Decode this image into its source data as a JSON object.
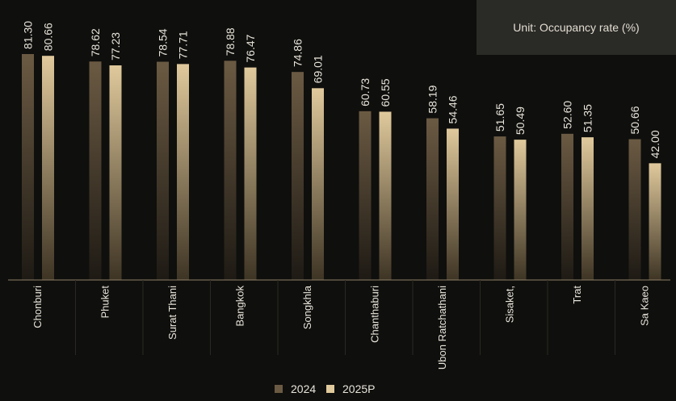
{
  "unit_label": "Unit: Occupancy rate (%)",
  "colors": {
    "background": "#0f0f0d",
    "series_2024_top": "#6b5a43",
    "series_2024_bottom": "#1e1a14",
    "series_2025_top": "#e0c99c",
    "series_2025_bottom": "#3e3424",
    "text": "#e8e4da",
    "axis": "#8c7f68"
  },
  "chart_data": {
    "type": "bar",
    "categories": [
      "Chonburi",
      "Phuket",
      "Surat Thani",
      "Bangkok",
      "Songkhla",
      "Chanthaburi",
      "Ubon Ratchathani",
      "Sisaket,",
      "Trat",
      "Sa Kaeo"
    ],
    "series": [
      {
        "name": "2024",
        "values": [
          81.3,
          78.62,
          78.54,
          78.88,
          74.86,
          60.73,
          58.19,
          51.65,
          52.6,
          50.66
        ],
        "labels": [
          "81.30",
          "78.62",
          "78.54",
          "78.88",
          "74.86",
          "60.73",
          "58.19",
          "51.65",
          "52.60",
          "50.66"
        ]
      },
      {
        "name": "2025P",
        "values": [
          80.66,
          77.23,
          77.71,
          76.47,
          69.01,
          60.55,
          54.46,
          50.49,
          51.35,
          42.0
        ],
        "labels": [
          "80.66",
          "77.23",
          "77.71",
          "76.47",
          "69.01",
          "60.55",
          "54.46",
          "50.49",
          "51.35",
          "42.00"
        ]
      }
    ],
    "ylim": [
      0,
      90
    ],
    "legend_position": "bottom-center",
    "grid": false
  }
}
